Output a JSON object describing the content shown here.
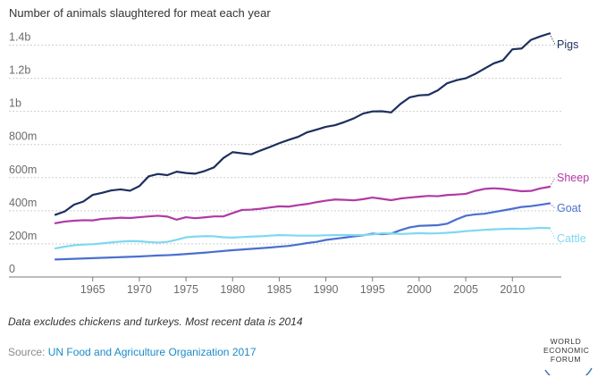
{
  "chart_data": {
    "type": "line",
    "title": "Number of animals slaughtered for meat each year",
    "xlabel": "",
    "ylabel": "",
    "xlim": [
      1961,
      2014
    ],
    "ylim": [
      0,
      1500000000
    ],
    "x_ticks": [
      1965,
      1970,
      1975,
      1980,
      1985,
      1990,
      1995,
      2000,
      2005,
      2010
    ],
    "y_ticks": [
      {
        "value": 0,
        "label": "0"
      },
      {
        "value": 200000000,
        "label": "200m"
      },
      {
        "value": 400000000,
        "label": "400m"
      },
      {
        "value": 600000000,
        "label": "600m"
      },
      {
        "value": 800000000,
        "label": "800m"
      },
      {
        "value": 1000000000,
        "label": "1b"
      },
      {
        "value": 1200000000,
        "label": "1.2b"
      },
      {
        "value": 1400000000,
        "label": "1.4b"
      }
    ],
    "x": [
      1961,
      1962,
      1963,
      1964,
      1965,
      1966,
      1967,
      1968,
      1969,
      1970,
      1971,
      1972,
      1973,
      1974,
      1975,
      1976,
      1977,
      1978,
      1979,
      1980,
      1981,
      1982,
      1983,
      1984,
      1985,
      1986,
      1987,
      1988,
      1989,
      1990,
      1991,
      1992,
      1993,
      1994,
      1995,
      1996,
      1997,
      1998,
      1999,
      2000,
      2001,
      2002,
      2003,
      2004,
      2005,
      2006,
      2007,
      2008,
      2009,
      2010,
      2011,
      2012,
      2013,
      2014
    ],
    "series": [
      {
        "name": "Pigs",
        "color": "#1c2f5e",
        "values": [
          376000000,
          396000000,
          437000000,
          456000000,
          496000000,
          508000000,
          523000000,
          529000000,
          521000000,
          549000000,
          608000000,
          622000000,
          615000000,
          636000000,
          628000000,
          624000000,
          640000000,
          662000000,
          718000000,
          754000000,
          747000000,
          741000000,
          764000000,
          785000000,
          808000000,
          828000000,
          846000000,
          874000000,
          890000000,
          907000000,
          917000000,
          936000000,
          958000000,
          987000000,
          1000000000,
          1001000000,
          994000000,
          1045000000,
          1085000000,
          1097000000,
          1100000000,
          1127000000,
          1170000000,
          1188000000,
          1200000000,
          1226000000,
          1258000000,
          1290000000,
          1309000000,
          1375000000,
          1380000000,
          1432000000,
          1453000000,
          1471000000
        ]
      },
      {
        "name": "Sheep",
        "color": "#b13aa4",
        "values": [
          325000000,
          335000000,
          340000000,
          343000000,
          342000000,
          351000000,
          354000000,
          358000000,
          356000000,
          361000000,
          366000000,
          370000000,
          365000000,
          346000000,
          361000000,
          355000000,
          360000000,
          366000000,
          366000000,
          386000000,
          405000000,
          407000000,
          412000000,
          420000000,
          427000000,
          425000000,
          434000000,
          441000000,
          452000000,
          461000000,
          468000000,
          466000000,
          463000000,
          470000000,
          480000000,
          472000000,
          464000000,
          474000000,
          480000000,
          485000000,
          490000000,
          488000000,
          495000000,
          498000000,
          502000000,
          520000000,
          532000000,
          536000000,
          532000000,
          525000000,
          518000000,
          520000000,
          535000000,
          545000000
        ]
      },
      {
        "name": "Goat",
        "color": "#4a6fcf",
        "values": [
          106000000,
          108000000,
          110000000,
          112000000,
          114000000,
          116000000,
          118000000,
          120000000,
          122000000,
          124000000,
          127000000,
          130000000,
          132000000,
          135000000,
          139000000,
          143000000,
          147000000,
          152000000,
          157000000,
          162000000,
          166000000,
          170000000,
          174000000,
          178000000,
          183000000,
          188000000,
          196000000,
          205000000,
          212000000,
          224000000,
          231000000,
          238000000,
          245000000,
          252000000,
          262000000,
          259000000,
          262000000,
          283000000,
          300000000,
          309000000,
          311000000,
          313000000,
          322000000,
          348000000,
          370000000,
          378000000,
          382000000,
          392000000,
          402000000,
          412000000,
          423000000,
          428000000,
          436000000,
          445000000
        ]
      },
      {
        "name": "Cattle",
        "color": "#7ed8f0",
        "values": [
          173000000,
          183000000,
          192000000,
          196000000,
          198000000,
          203000000,
          209000000,
          214000000,
          217000000,
          216000000,
          211000000,
          208000000,
          212000000,
          225000000,
          240000000,
          244000000,
          247000000,
          246000000,
          240000000,
          238000000,
          241000000,
          244000000,
          246000000,
          250000000,
          253000000,
          252000000,
          250000000,
          250000000,
          250000000,
          252000000,
          253000000,
          254000000,
          253000000,
          254000000,
          257000000,
          264000000,
          263000000,
          260000000,
          262000000,
          265000000,
          263000000,
          264000000,
          267000000,
          271000000,
          277000000,
          281000000,
          285000000,
          288000000,
          290000000,
          292000000,
          291000000,
          293000000,
          297000000,
          295000000
        ]
      }
    ]
  },
  "footer": {
    "note": "Data excludes chickens and turkeys. Most recent data is 2014",
    "source_prefix": "Source: ",
    "source_link": "UN Food and Agriculture Organization 2017"
  },
  "logo": {
    "line1": "WORLD",
    "line2": "ECONOMIC",
    "line3": "FORUM"
  }
}
